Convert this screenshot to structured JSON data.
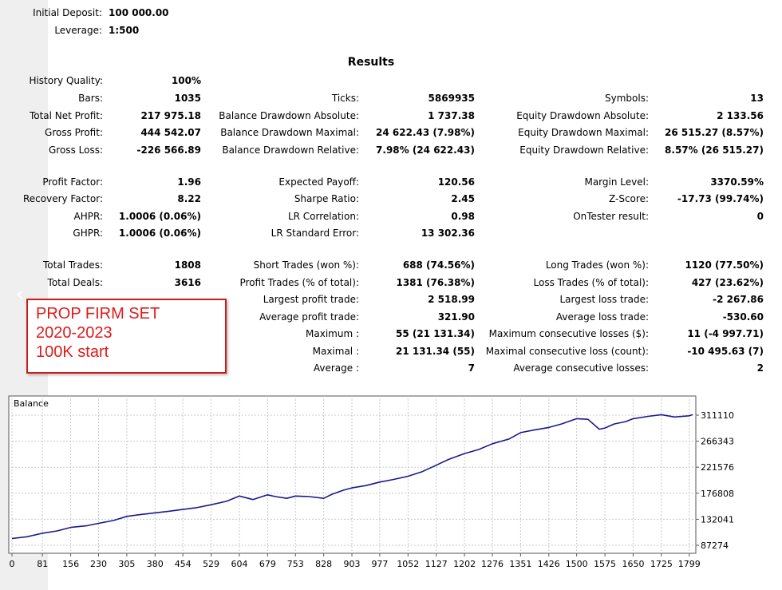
{
  "header": {
    "initial_deposit": {
      "label": "Initial Deposit:",
      "value": "100 000.00"
    },
    "leverage": {
      "label": "Leverage:",
      "value": "1:500"
    }
  },
  "results_title": "Results",
  "col1": [
    {
      "label": "History Quality:",
      "value": "100%"
    },
    {
      "label": "Bars:",
      "value": "1035"
    },
    {
      "label": "Total Net Profit:",
      "value": "217 975.18"
    },
    {
      "label": "Gross Profit:",
      "value": "444 542.07"
    },
    {
      "label": "Gross Loss:",
      "value": "-226 566.89"
    },
    {
      "label": "Profit Factor:",
      "value": "1.96"
    },
    {
      "label": "Recovery Factor:",
      "value": "8.22"
    },
    {
      "label": "AHPR:",
      "value": "1.0006 (0.06%)"
    },
    {
      "label": "GHPR:",
      "value": "1.0006 (0.06%)"
    },
    {
      "label": "Total Trades:",
      "value": "1808"
    },
    {
      "label": "Total Deals:",
      "value": "3616"
    }
  ],
  "col2": [
    {
      "label": "Ticks:",
      "value": "5869935"
    },
    {
      "label": "Balance Drawdown Absolute:",
      "value": "1 737.38"
    },
    {
      "label": "Balance Drawdown Maximal:",
      "value": "24 622.43 (7.98%)"
    },
    {
      "label": "Balance Drawdown Relative:",
      "value": "7.98% (24 622.43)"
    },
    {
      "label": "Expected Payoff:",
      "value": "120.56"
    },
    {
      "label": "Sharpe Ratio:",
      "value": "2.45"
    },
    {
      "label": "LR Correlation:",
      "value": "0.98"
    },
    {
      "label": "LR Standard Error:",
      "value": "13 302.36"
    },
    {
      "label": "Short Trades (won %):",
      "value": "688 (74.56%)"
    },
    {
      "label": "Profit Trades (% of total):",
      "value": "1381 (76.38%)"
    },
    {
      "label": "Largest profit trade:",
      "value": "2 518.99"
    },
    {
      "label": "Average profit trade:",
      "value": "321.90"
    },
    {
      "label": "Maximum :",
      "value": "55 (21 131.34)"
    },
    {
      "label": "Maximal :",
      "value": "21 131.34 (55)"
    },
    {
      "label": "Average :",
      "value": "7"
    }
  ],
  "col3": [
    {
      "label": "Symbols:",
      "value": "13"
    },
    {
      "label": "Equity Drawdown Absolute:",
      "value": "2 133.56"
    },
    {
      "label": "Equity Drawdown Maximal:",
      "value": "26 515.27 (8.57%)"
    },
    {
      "label": "Equity Drawdown Relative:",
      "value": "8.57% (26 515.27)"
    },
    {
      "label": "Margin Level:",
      "value": "3370.59%"
    },
    {
      "label": "Z-Score:",
      "value": "-17.73 (99.74%)"
    },
    {
      "label": "OnTester result:",
      "value": "0"
    },
    {
      "label": "Long Trades (won %):",
      "value": "1120 (77.50%)"
    },
    {
      "label": "Loss Trades (% of total):",
      "value": "427 (23.62%)"
    },
    {
      "label": "Largest loss trade:",
      "value": "-2 267.86"
    },
    {
      "label": "Average loss trade:",
      "value": "-530.60"
    },
    {
      "label": "Maximum consecutive losses ($):",
      "value": "11 (-4 997.71)"
    },
    {
      "label": "Maximal consecutive loss (count):",
      "value": "-10 495.63 (7)"
    },
    {
      "label": "Average consecutive losses:",
      "value": "2"
    }
  ],
  "annotation": {
    "lines": [
      "PROP FIRM SET",
      "2020-2023",
      "100K start"
    ]
  },
  "nav": {
    "prev_icon": "chevron-left-icon",
    "prev_glyph": "‹"
  },
  "colors": {
    "line": "#1a1a8c",
    "annotation": "#e01b1b",
    "annotation_border": "#d11a1a",
    "grid": "#c8c8c8"
  },
  "chart_data": {
    "type": "line",
    "title": "Balance",
    "xlabel": "",
    "ylabel": "",
    "x_ticks": [
      "0",
      "81",
      "156",
      "230",
      "305",
      "380",
      "454",
      "529",
      "604",
      "679",
      "753",
      "828",
      "903",
      "977",
      "1052",
      "1127",
      "1202",
      "1276",
      "1351",
      "1426",
      "1500",
      "1575",
      "1650",
      "1725",
      "1799"
    ],
    "y_ticks": [
      "311110",
      "266343",
      "221576",
      "176808",
      "132041",
      "87274"
    ],
    "xlim": [
      0,
      1808
    ],
    "ylim": [
      87274,
      311110
    ],
    "grid": true,
    "series": [
      {
        "name": "",
        "x": [
          0,
          40,
          81,
          120,
          156,
          200,
          230,
          270,
          305,
          340,
          380,
          420,
          454,
          490,
          529,
          570,
          604,
          640,
          679,
          700,
          730,
          753,
          790,
          828,
          850,
          880,
          903,
          940,
          977,
          1010,
          1052,
          1090,
          1127,
          1160,
          1202,
          1240,
          1276,
          1320,
          1351,
          1390,
          1426,
          1460,
          1500,
          1530,
          1560,
          1575,
          1600,
          1630,
          1650,
          1690,
          1725,
          1760,
          1799,
          1808
        ],
        "y": [
          99000,
          102000,
          108000,
          112000,
          118000,
          121000,
          125000,
          130000,
          137000,
          140000,
          143000,
          146000,
          149000,
          152000,
          157000,
          163000,
          172000,
          166000,
          174000,
          171000,
          168000,
          172000,
          171000,
          168000,
          175000,
          182000,
          186000,
          190000,
          196000,
          200000,
          206000,
          214000,
          225000,
          235000,
          245000,
          252000,
          262000,
          270000,
          281000,
          286000,
          290000,
          296000,
          305000,
          304000,
          287000,
          289000,
          296000,
          300000,
          305000,
          309000,
          312000,
          308000,
          310000,
          312000
        ]
      }
    ]
  }
}
